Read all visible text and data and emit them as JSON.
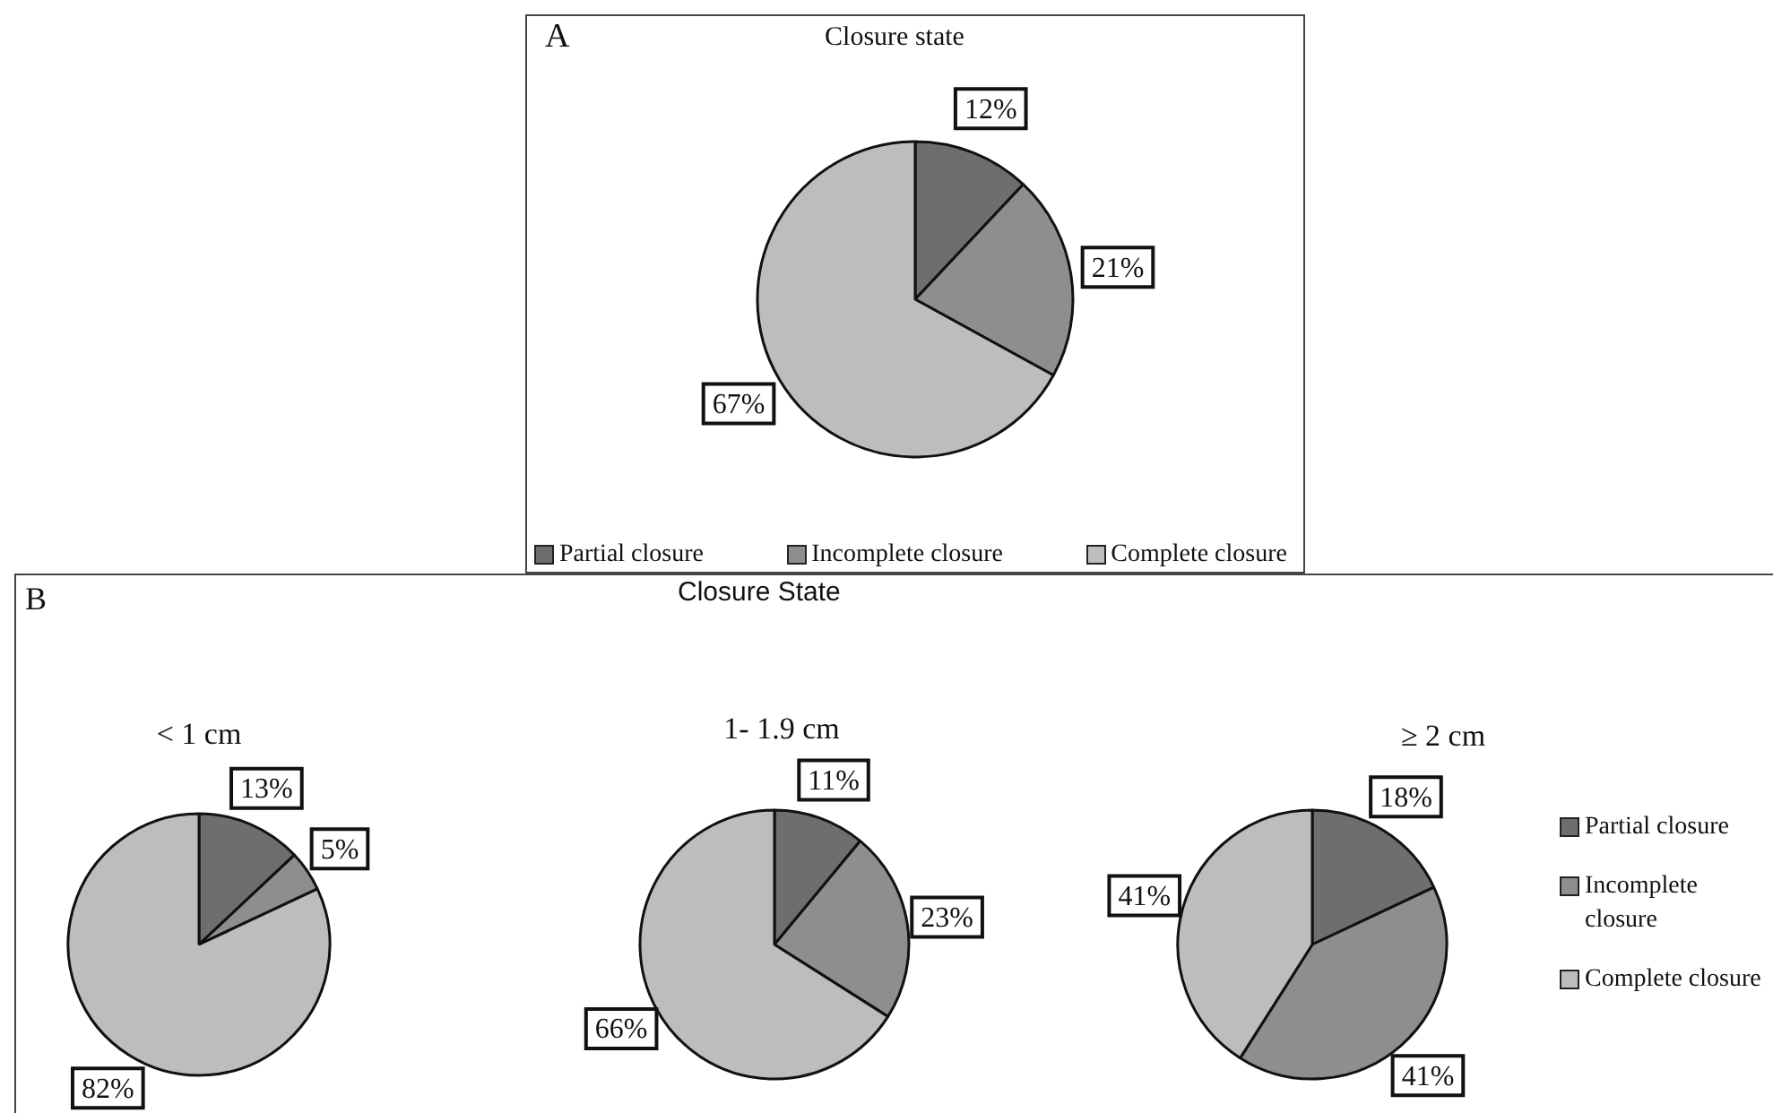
{
  "chart_data": [
    {
      "type": "pie",
      "title": "Closure state",
      "categories": [
        "Partial closure",
        "Incomplete closure",
        "Complete closure"
      ],
      "values": [
        12,
        21,
        67
      ],
      "colors": [
        "#6e6e6e",
        "#8e8e8e",
        "#bdbdbd"
      ],
      "value_labels": [
        "12%",
        "21%",
        "67%"
      ],
      "legend": "bottom",
      "annotations": [
        "A"
      ]
    },
    {
      "type": "pie",
      "title": "< 1 cm",
      "categories": [
        null,
        null,
        null
      ],
      "values": [
        13,
        5,
        82
      ],
      "colors": [
        "#6e6e6e",
        "#8e8e8e",
        "#bdbdbd"
      ],
      "value_labels": [
        "13%",
        "5%",
        "82%"
      ],
      "annotations": [
        "B",
        "Closure State"
      ]
    },
    {
      "type": "pie",
      "title": "1- 1.9 cm",
      "categories": [
        null,
        null,
        null
      ],
      "values": [
        11,
        23,
        66
      ],
      "colors": [
        "#6e6e6e",
        "#8e8e8e",
        "#bdbdbd"
      ],
      "value_labels": [
        "11%",
        "23%",
        "66%"
      ]
    },
    {
      "type": "pie",
      "title": "≥ 2 cm",
      "categories": [
        "Partial closure",
        "Incomplete closure",
        "Complete closure"
      ],
      "values": [
        18,
        41,
        41
      ],
      "colors": [
        "#6e6e6e",
        "#8e8e8e",
        "#bdbdbd"
      ],
      "value_labels": [
        "18%",
        "41%",
        "41%"
      ],
      "legend": "right"
    }
  ]
}
